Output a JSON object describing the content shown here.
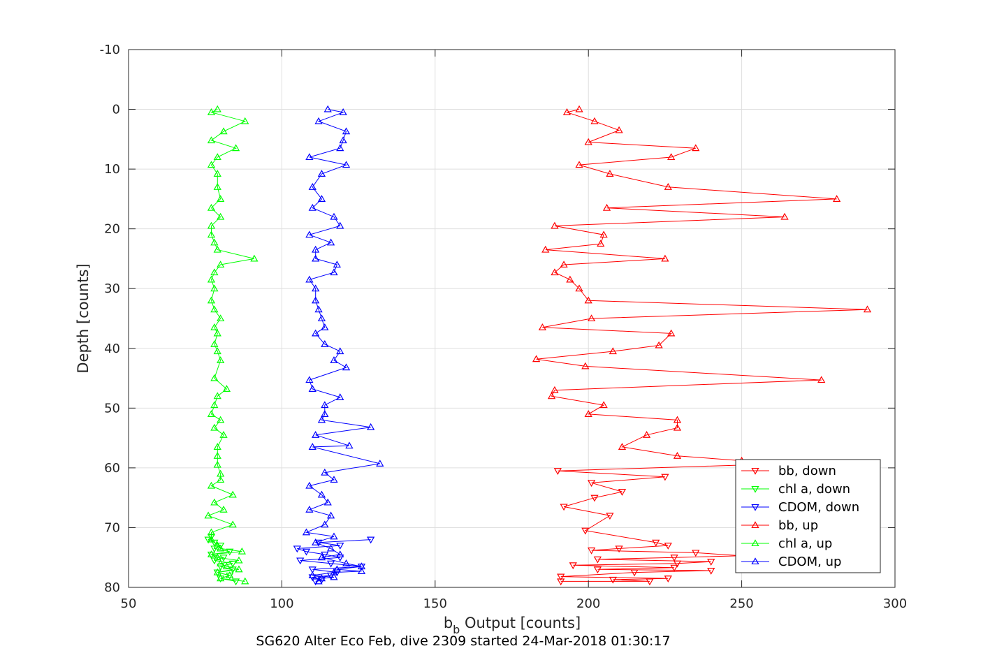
{
  "colors": {
    "bb": "#ff0000",
    "chl_a": "#00ff00",
    "cdom": "#0000ff",
    "grid": "#dfdfdf",
    "axis": "#262626"
  },
  "caption": "SG620 Alter Eco Feb, dive 2309 started 24-Mar-2018 01:30:17",
  "chart_data": {
    "type": "line",
    "xlabel_main": "b",
    "xlabel_sub": "b",
    "xlabel_rest": " Output [counts]",
    "ylabel": "Depth [counts]",
    "xlim": [
      50,
      300
    ],
    "ylim": [
      -10,
      80
    ],
    "y_reversed": true,
    "grid": true,
    "legend_position": "lower-right",
    "x_ticks": [
      50,
      100,
      150,
      200,
      250,
      300
    ],
    "y_ticks": [
      -10,
      0,
      10,
      20,
      30,
      40,
      50,
      60,
      70,
      80
    ],
    "x_tick_labels": [
      "50",
      "100",
      "150",
      "200",
      "250",
      "300"
    ],
    "y_tick_labels": [
      "-10",
      "0",
      "10",
      "20",
      "30",
      "40",
      "50",
      "60",
      "70",
      "80"
    ],
    "series": [
      {
        "name": "bb, down",
        "color_key": "bb",
        "marker": "down",
        "points": [
          [
            191,
            79
          ],
          [
            220,
            79
          ],
          [
            208,
            78.7
          ],
          [
            226,
            78.5
          ],
          [
            191,
            78.2
          ],
          [
            215,
            77.5
          ],
          [
            240,
            77.2
          ],
          [
            203,
            77
          ],
          [
            228,
            76.7
          ],
          [
            195,
            76.3
          ],
          [
            229,
            76
          ],
          [
            240,
            75.7
          ],
          [
            203,
            75.3
          ],
          [
            228,
            75
          ],
          [
            250,
            74.7
          ],
          [
            235,
            74.2
          ],
          [
            201,
            73.8
          ],
          [
            210,
            73.5
          ],
          [
            226,
            73
          ],
          [
            222,
            72.5
          ],
          [
            199,
            70.5
          ],
          [
            207,
            68
          ],
          [
            192,
            66.5
          ],
          [
            202,
            65
          ],
          [
            211,
            64
          ],
          [
            201,
            62.5
          ],
          [
            225,
            61.5
          ],
          [
            190,
            60.5
          ],
          [
            252,
            59.5
          ]
        ]
      },
      {
        "name": "chl a, down",
        "color_key": "chl_a",
        "marker": "down",
        "points": [
          [
            85,
            79
          ],
          [
            80,
            78.5
          ],
          [
            83,
            78
          ],
          [
            79,
            77.5
          ],
          [
            84,
            77
          ],
          [
            80,
            76.5
          ],
          [
            84,
            76
          ],
          [
            78,
            75.5
          ],
          [
            81,
            75
          ],
          [
            77,
            74.5
          ],
          [
            83,
            74
          ],
          [
            78,
            73.5
          ],
          [
            80,
            73
          ],
          [
            78,
            72.5
          ],
          [
            76,
            72
          ],
          [
            77,
            71.5
          ]
        ]
      },
      {
        "name": "CDOM, down",
        "color_key": "cdom",
        "marker": "down",
        "points": [
          [
            111,
            79
          ],
          [
            113,
            78.7
          ],
          [
            110,
            78.3
          ],
          [
            116,
            78
          ],
          [
            118,
            77.5
          ],
          [
            110,
            77
          ],
          [
            126,
            76.5
          ],
          [
            116,
            76
          ],
          [
            106,
            75.5
          ],
          [
            119,
            75
          ],
          [
            114,
            74.5
          ],
          [
            108,
            74
          ],
          [
            105,
            73.5
          ],
          [
            119,
            73
          ],
          [
            112,
            72.5
          ],
          [
            129,
            72
          ]
        ]
      },
      {
        "name": "bb, up",
        "color_key": "bb",
        "marker": "up",
        "points": [
          [
            197,
            0
          ],
          [
            193,
            0.5
          ],
          [
            202,
            2
          ],
          [
            210,
            3.5
          ],
          [
            200,
            5.5
          ],
          [
            235,
            6.5
          ],
          [
            227,
            8
          ],
          [
            197,
            9.3
          ],
          [
            207,
            10.8
          ],
          [
            226,
            13
          ],
          [
            281,
            15
          ],
          [
            206,
            16.5
          ],
          [
            264,
            18
          ],
          [
            189,
            19.5
          ],
          [
            205,
            21
          ],
          [
            204,
            22.5
          ],
          [
            186,
            23.5
          ],
          [
            225,
            25
          ],
          [
            192,
            26
          ],
          [
            189,
            27.3
          ],
          [
            194,
            28.5
          ],
          [
            197,
            30
          ],
          [
            200,
            32
          ],
          [
            291,
            33.5
          ],
          [
            201,
            35
          ],
          [
            185,
            36.5
          ],
          [
            227,
            37.5
          ],
          [
            223,
            39.5
          ],
          [
            208,
            40.5
          ],
          [
            183,
            41.8
          ],
          [
            199,
            43
          ],
          [
            276,
            45.3
          ],
          [
            189,
            47
          ],
          [
            188,
            48
          ],
          [
            205,
            49.5
          ],
          [
            200,
            51
          ],
          [
            229,
            52
          ],
          [
            229,
            53.3
          ],
          [
            219,
            54.5
          ],
          [
            211,
            56.5
          ],
          [
            229,
            58
          ],
          [
            250,
            58.8
          ]
        ]
      },
      {
        "name": "chl a, up",
        "color_key": "chl_a",
        "marker": "up",
        "points": [
          [
            79,
            0
          ],
          [
            77,
            0.5
          ],
          [
            88,
            2
          ],
          [
            81,
            3.7
          ],
          [
            77,
            5.2
          ],
          [
            85,
            6.5
          ],
          [
            79,
            8
          ],
          [
            77,
            9.3
          ],
          [
            79,
            10.8
          ],
          [
            79,
            13
          ],
          [
            80,
            15
          ],
          [
            77,
            16.5
          ],
          [
            80,
            18
          ],
          [
            77,
            19.5
          ],
          [
            77,
            21
          ],
          [
            78,
            22.3
          ],
          [
            79,
            23.5
          ],
          [
            91,
            25
          ],
          [
            80,
            26
          ],
          [
            78,
            27.3
          ],
          [
            77,
            28.5
          ],
          [
            78,
            30
          ],
          [
            77,
            32
          ],
          [
            78,
            33.5
          ],
          [
            80,
            35
          ],
          [
            78,
            36.5
          ],
          [
            79,
            37.5
          ],
          [
            78,
            39.3
          ],
          [
            79,
            40.5
          ],
          [
            80,
            42
          ],
          [
            78,
            45
          ],
          [
            82,
            46.8
          ],
          [
            79,
            48
          ],
          [
            78,
            49.5
          ],
          [
            77,
            51
          ],
          [
            80,
            52
          ],
          [
            78,
            53.3
          ],
          [
            81,
            54.5
          ],
          [
            79,
            56.5
          ],
          [
            79,
            58
          ],
          [
            79,
            59.5
          ],
          [
            80,
            61
          ],
          [
            80,
            62
          ],
          [
            77,
            63
          ],
          [
            84,
            64.5
          ],
          [
            78,
            65.8
          ],
          [
            81,
            67
          ],
          [
            76,
            68
          ],
          [
            84,
            69.5
          ],
          [
            77,
            70.8
          ],
          [
            77,
            72
          ],
          [
            79,
            73
          ],
          [
            80,
            73.5
          ],
          [
            87,
            74
          ],
          [
            77,
            74.5
          ],
          [
            79,
            75
          ],
          [
            86,
            75.5
          ],
          [
            80,
            76
          ],
          [
            82,
            76.5
          ],
          [
            86,
            77
          ],
          [
            79,
            77.5
          ],
          [
            83,
            78
          ],
          [
            80,
            78.5
          ],
          [
            88,
            79
          ]
        ]
      },
      {
        "name": "CDOM, up",
        "color_key": "cdom",
        "marker": "up",
        "points": [
          [
            115,
            0
          ],
          [
            120,
            0.5
          ],
          [
            112,
            2
          ],
          [
            121,
            3.7
          ],
          [
            120,
            5.2
          ],
          [
            119,
            6.5
          ],
          [
            109,
            8
          ],
          [
            121,
            9.3
          ],
          [
            113,
            10.8
          ],
          [
            110,
            13
          ],
          [
            113,
            15
          ],
          [
            110,
            16.5
          ],
          [
            117,
            18
          ],
          [
            119,
            19.5
          ],
          [
            109,
            21
          ],
          [
            116,
            22.3
          ],
          [
            111,
            23.5
          ],
          [
            111,
            25
          ],
          [
            118,
            26
          ],
          [
            117,
            27.3
          ],
          [
            109,
            28.5
          ],
          [
            111,
            30
          ],
          [
            111,
            32
          ],
          [
            112,
            33.5
          ],
          [
            113,
            35
          ],
          [
            114,
            36.5
          ],
          [
            111,
            37.5
          ],
          [
            114,
            39.3
          ],
          [
            119,
            40.5
          ],
          [
            117,
            42
          ],
          [
            121,
            43.2
          ],
          [
            109,
            45.3
          ],
          [
            110,
            46.8
          ],
          [
            119,
            48.2
          ],
          [
            114,
            49.5
          ],
          [
            114,
            51
          ],
          [
            113,
            52
          ],
          [
            129,
            53.2
          ],
          [
            111,
            54.5
          ],
          [
            122,
            56.3
          ],
          [
            110,
            56.5
          ],
          [
            132,
            59.3
          ],
          [
            114,
            60.8
          ],
          [
            117,
            62
          ],
          [
            109,
            63
          ],
          [
            113,
            64.5
          ],
          [
            115,
            65.8
          ],
          [
            109,
            67
          ],
          [
            116,
            68
          ],
          [
            114,
            69.5
          ],
          [
            108,
            70.8
          ],
          [
            117,
            71.5
          ],
          [
            111,
            72.5
          ],
          [
            116,
            73.5
          ],
          [
            119,
            74.5
          ],
          [
            113,
            75
          ],
          [
            121,
            76
          ],
          [
            126,
            76.5
          ],
          [
            118,
            77
          ],
          [
            126,
            77.3
          ],
          [
            117,
            77.5
          ],
          [
            110,
            78
          ],
          [
            117,
            78.3
          ],
          [
            113,
            78.5
          ],
          [
            112,
            79
          ]
        ]
      }
    ]
  }
}
